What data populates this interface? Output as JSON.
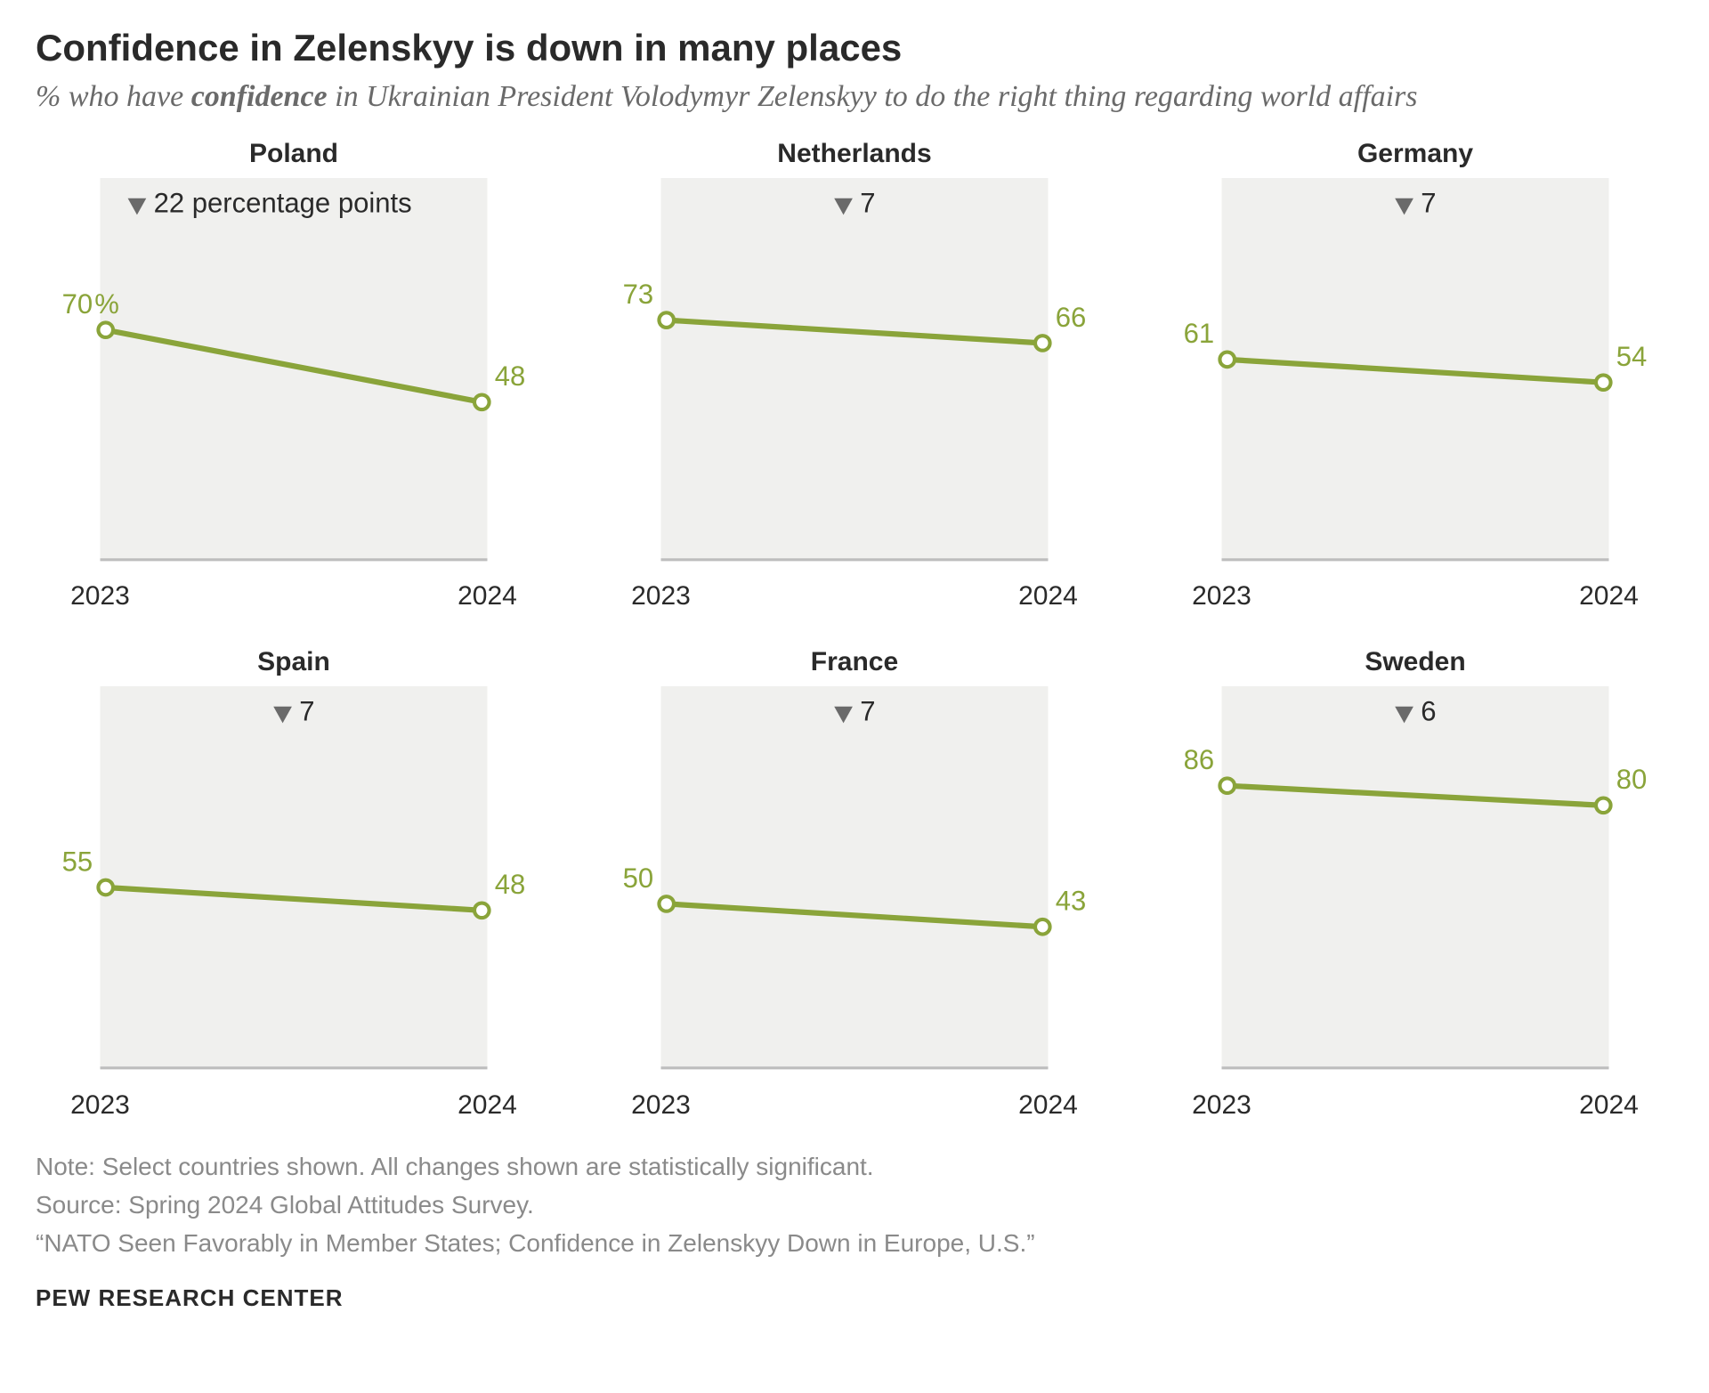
{
  "title": "Confidence in Zelenskyy is down in many places",
  "subtitle_pre": "% who have ",
  "subtitle_bold": "confidence",
  "subtitle_post": " in Ukrainian President Volodymyr Zelenskyy to do the right thing regarding world affairs",
  "x_labels": [
    "2023",
    "2024"
  ],
  "ylim": [
    0,
    100
  ],
  "line_color": "#8aa43a",
  "line_width": 6,
  "marker_radius": 8,
  "marker_fill": "#ffffff",
  "marker_stroke_width": 4,
  "plot_bg": "#f0f0ee",
  "baseline_color": "#bdbdbd",
  "baseline_width": 3,
  "value_label_color": "#8aa43a",
  "value_label_fontsize": 30,
  "value_label_font": "Arial, Helvetica, sans-serif",
  "delta_triangle_color": "#6a6a6a",
  "delta_text_color": "#2a2a2a",
  "delta_fontsize": 30,
  "panel_title_fontsize": 30,
  "panels": [
    {
      "country": "Poland",
      "v2023": 70,
      "v2024": 48,
      "delta_text": "22 percentage points",
      "show_percent": true
    },
    {
      "country": "Netherlands",
      "v2023": 73,
      "v2024": 66,
      "delta_text": "7",
      "show_percent": false
    },
    {
      "country": "Germany",
      "v2023": 61,
      "v2024": 54,
      "delta_text": "7",
      "show_percent": false
    },
    {
      "country": "Spain",
      "v2023": 55,
      "v2024": 48,
      "delta_text": "7",
      "show_percent": false
    },
    {
      "country": "France",
      "v2023": 50,
      "v2024": 43,
      "delta_text": "7",
      "show_percent": false
    },
    {
      "country": "Sweden",
      "v2023": 86,
      "v2024": 80,
      "delta_text": "6",
      "show_percent": false
    }
  ],
  "note_line1": "Note: Select countries shown. All changes shown are statistically significant.",
  "note_line2": "Source: Spring 2024 Global Attitudes Survey.",
  "note_line3": "“NATO Seen Favorably in Member States; Confidence in Zelenskyy Down in Europe, U.S.”",
  "attribution": "PEW RESEARCH CENTER"
}
